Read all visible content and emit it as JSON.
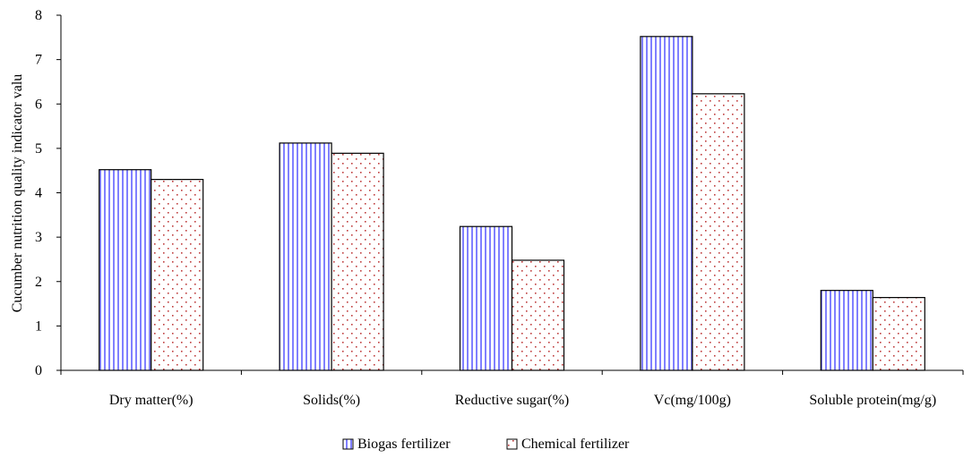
{
  "chart_data": {
    "type": "bar",
    "title": "",
    "xlabel": "",
    "ylabel": "Cucumber nutrition quality indicator valu",
    "ylim": [
      0,
      8
    ],
    "yticks": [
      0,
      1,
      2,
      3,
      4,
      5,
      6,
      7,
      8
    ],
    "grid": false,
    "legend_position": "bottom-center",
    "categories": [
      "Dry matter(%)",
      "Solids(%)",
      "Reductive sugar(%)",
      "Vc(mg/100g)",
      "Soluble protein(mg/g)"
    ],
    "series": [
      {
        "name": "Biogas fertilizer",
        "values": [
          4.52,
          5.12,
          3.24,
          7.52,
          1.8
        ],
        "pattern": "vertical-lines",
        "pattern_color": "#8080ff"
      },
      {
        "name": "Chemical fertilizer",
        "values": [
          4.3,
          4.89,
          2.48,
          6.23,
          1.64
        ],
        "pattern": "dots",
        "pattern_color": "#c04040"
      }
    ]
  }
}
